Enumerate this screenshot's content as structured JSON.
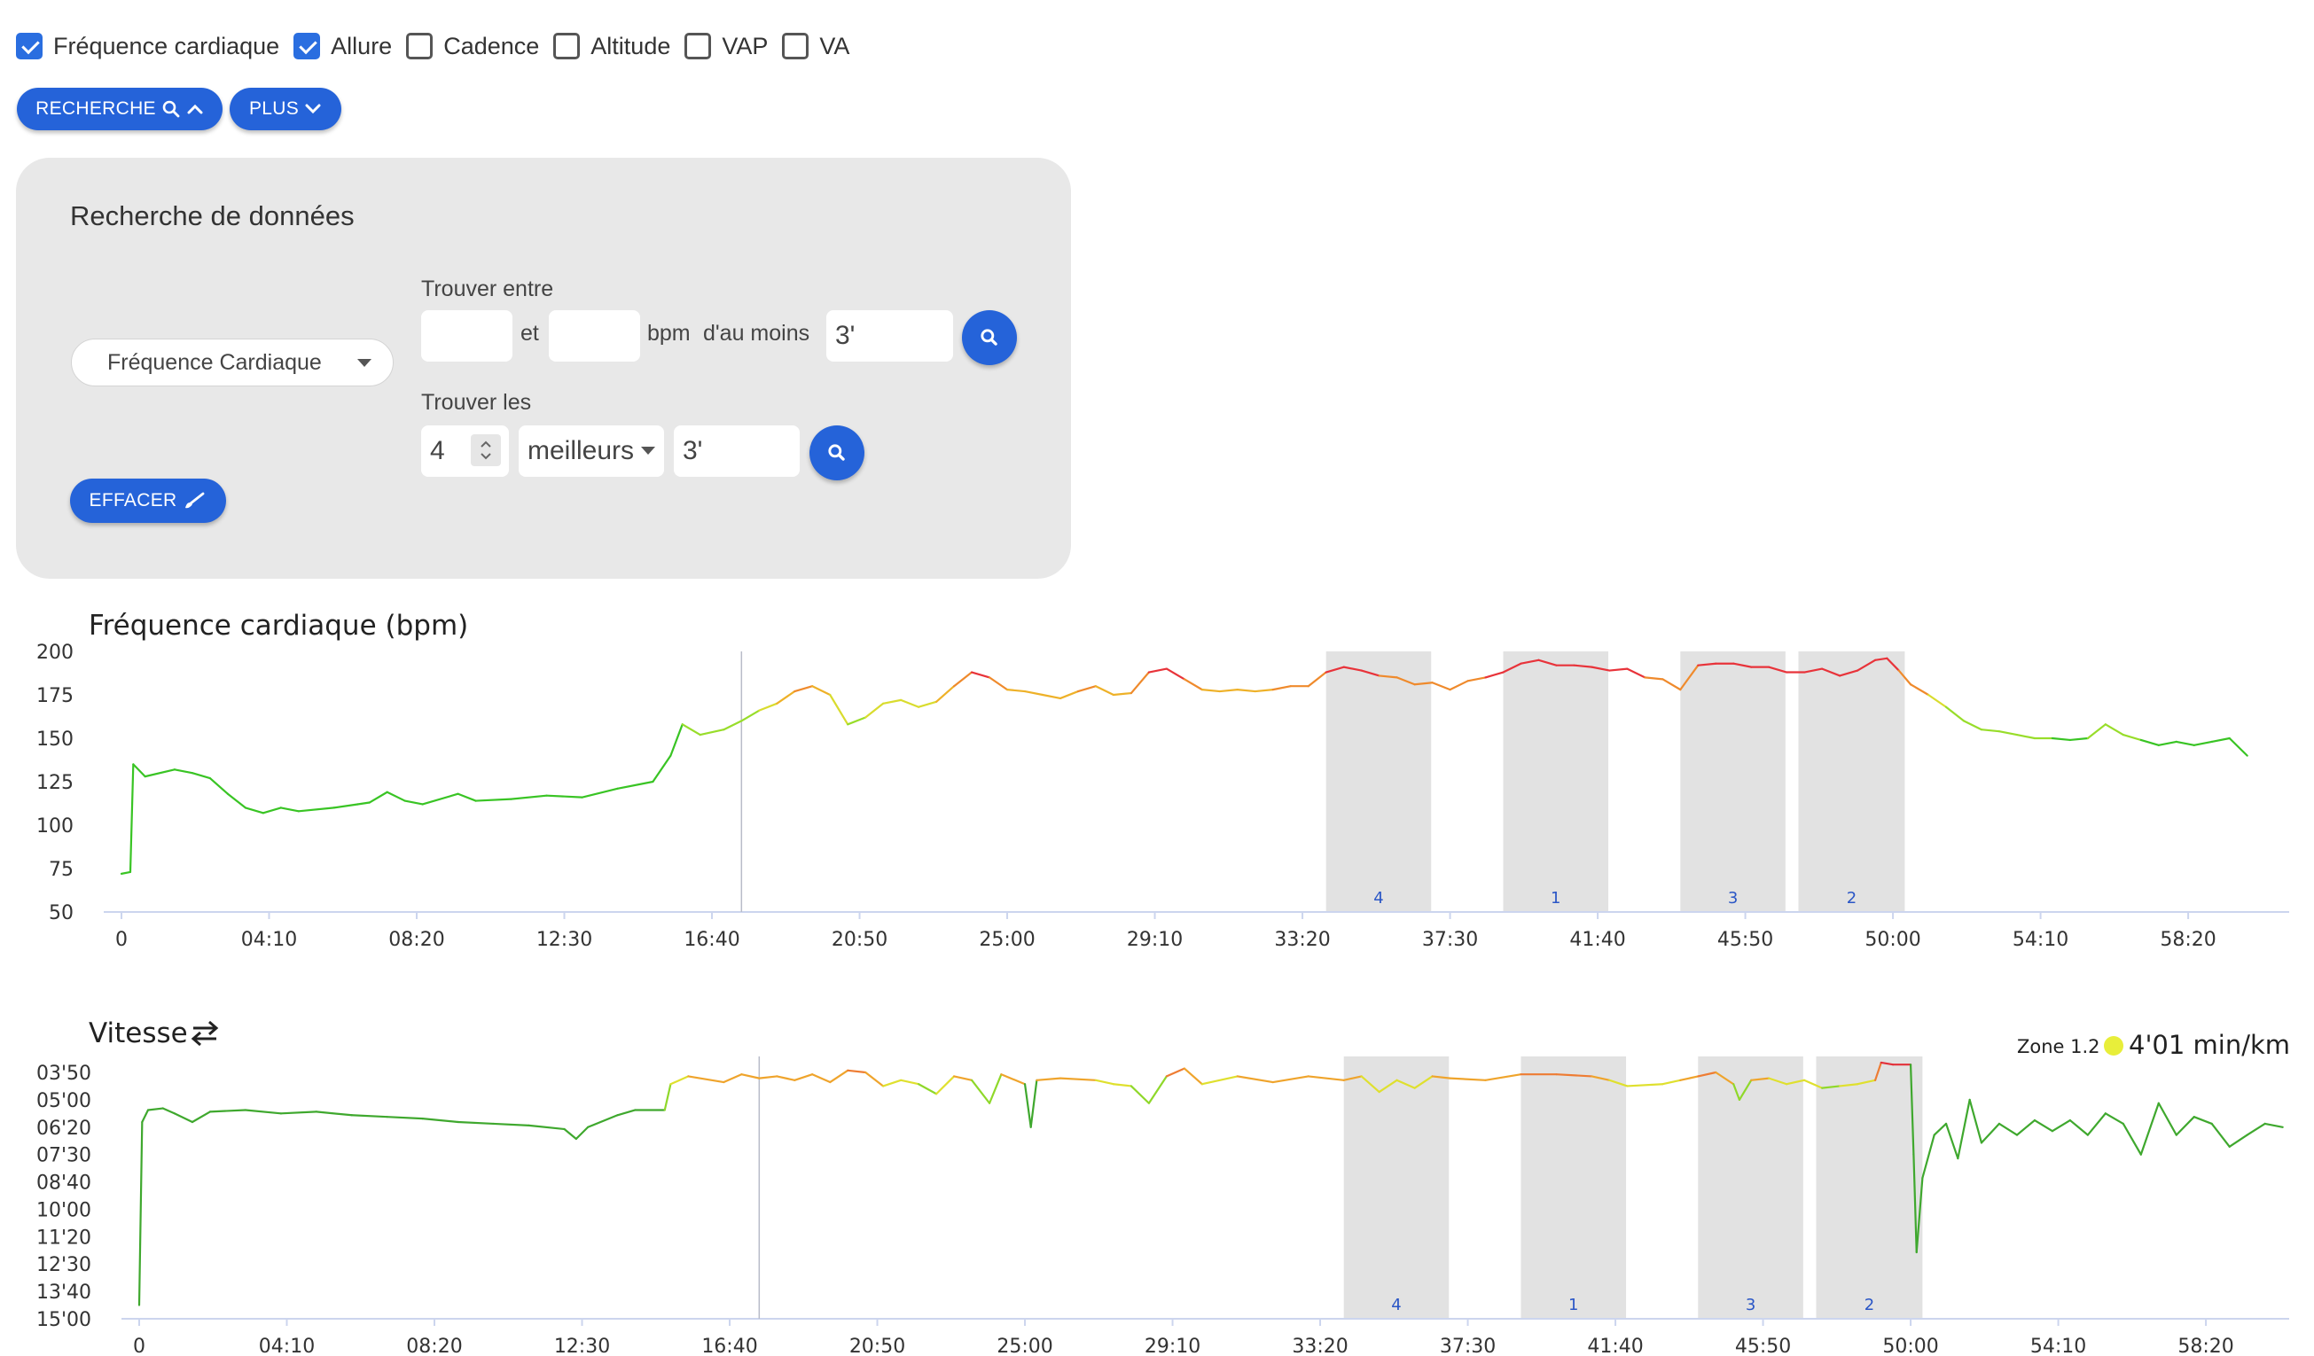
{
  "checkboxes": [
    {
      "label": "Fréquence cardiaque",
      "checked": true
    },
    {
      "label": "Allure",
      "checked": true
    },
    {
      "label": "Cadence",
      "checked": false
    },
    {
      "label": "Altitude",
      "checked": false
    },
    {
      "label": "VAP",
      "checked": false
    },
    {
      "label": "VA",
      "checked": false
    }
  ],
  "buttons": {
    "recherche": "RECHERCHE",
    "plus": "PLUS",
    "effacer": "EFFACER"
  },
  "panel": {
    "title": "Recherche de données",
    "metric": "Fréquence Cardiaque",
    "find_between": "Trouver entre",
    "et": "et",
    "bpm": "bpm",
    "au_moins": "d'au moins",
    "min_value": "",
    "max_value": "",
    "duration1": "3'",
    "find_best": "Trouver les",
    "count": "4",
    "best_mode": "meilleurs",
    "duration2": "3'"
  },
  "colors": {
    "accent": "#2563d9",
    "highlight": "#e2e2e2",
    "zone_dot": "#e8ee3a"
  },
  "chart_data": [
    {
      "type": "line",
      "title": "Fréquence cardiaque (bpm)",
      "ylim": [
        50,
        200
      ],
      "yticks": [
        "50",
        "75",
        "100",
        "125",
        "150",
        "175",
        "200"
      ],
      "xticks": [
        "0",
        "04:10",
        "08:20",
        "12:30",
        "16:40",
        "20:50",
        "25:00",
        "29:10",
        "33:20",
        "37:30",
        "41:40",
        "45:50",
        "50:00",
        "54:10",
        "58:20"
      ],
      "cursor_x": "17:30",
      "highlights": [
        {
          "label": "4",
          "from": "34:00",
          "to": "36:58"
        },
        {
          "label": "1",
          "from": "39:00",
          "to": "41:58"
        },
        {
          "label": "3",
          "from": "44:00",
          "to": "46:58"
        },
        {
          "label": "2",
          "from": "47:20",
          "to": "50:20"
        }
      ],
      "series": [
        {
          "points": [
            [
              "0",
              72
            ],
            [
              "0:15",
              73
            ],
            [
              "0:20",
              135
            ],
            [
              "0:40",
              128
            ],
            [
              "1:30",
              132
            ],
            [
              "2:00",
              130
            ],
            [
              "2:30",
              127
            ],
            [
              "3:00",
              118
            ],
            [
              "3:30",
              110
            ],
            [
              "4:00",
              107
            ],
            [
              "4:30",
              110
            ],
            [
              "5:00",
              108
            ],
            [
              "6:00",
              110
            ],
            [
              "6:40",
              112
            ],
            [
              "7:00",
              113
            ],
            [
              "7:30",
              119
            ],
            [
              "8:00",
              114
            ],
            [
              "8:30",
              112
            ],
            [
              "9:30",
              118
            ],
            [
              "10:00",
              114
            ],
            [
              "11:00",
              115
            ],
            [
              "12:00",
              117
            ],
            [
              "13:00",
              116
            ],
            [
              "14:00",
              121
            ],
            [
              "15:00",
              125
            ],
            [
              "15:30",
              140
            ],
            [
              "15:50",
              158
            ],
            [
              "16:20",
              152
            ],
            [
              "17:00",
              155
            ],
            [
              "17:30",
              160
            ],
            [
              "18:00",
              166
            ],
            [
              "18:30",
              170
            ],
            [
              "19:00",
              177
            ],
            [
              "19:30",
              180
            ],
            [
              "20:00",
              175
            ],
            [
              "20:30",
              158
            ],
            [
              "21:00",
              162
            ],
            [
              "21:30",
              170
            ],
            [
              "22:00",
              172
            ],
            [
              "22:30",
              168
            ],
            [
              "23:00",
              171
            ],
            [
              "23:30",
              180
            ],
            [
              "24:00",
              188
            ],
            [
              "24:30",
              185
            ],
            [
              "25:00",
              178
            ],
            [
              "25:30",
              177
            ],
            [
              "26:00",
              175
            ],
            [
              "26:30",
              173
            ],
            [
              "27:00",
              177
            ],
            [
              "27:30",
              180
            ],
            [
              "28:00",
              175
            ],
            [
              "28:30",
              176
            ],
            [
              "29:00",
              188
            ],
            [
              "29:30",
              190
            ],
            [
              "30:00",
              184
            ],
            [
              "30:30",
              178
            ],
            [
              "31:00",
              177
            ],
            [
              "31:30",
              178
            ],
            [
              "32:00",
              177
            ],
            [
              "32:30",
              178
            ],
            [
              "33:00",
              180
            ],
            [
              "33:30",
              180
            ],
            [
              "34:00",
              188
            ],
            [
              "34:30",
              191
            ],
            [
              "35:00",
              189
            ],
            [
              "35:30",
              186
            ],
            [
              "36:00",
              185
            ],
            [
              "36:30",
              181
            ],
            [
              "37:00",
              182
            ],
            [
              "37:30",
              178
            ],
            [
              "38:00",
              183
            ],
            [
              "38:30",
              185
            ],
            [
              "39:00",
              188
            ],
            [
              "39:30",
              193
            ],
            [
              "40:00",
              195
            ],
            [
              "40:30",
              192
            ],
            [
              "41:00",
              192
            ],
            [
              "41:30",
              191
            ],
            [
              "42:00",
              189
            ],
            [
              "42:30",
              190
            ],
            [
              "43:00",
              185
            ],
            [
              "43:30",
              184
            ],
            [
              "44:00",
              178
            ],
            [
              "44:30",
              192
            ],
            [
              "45:00",
              193
            ],
            [
              "45:30",
              193
            ],
            [
              "46:00",
              191
            ],
            [
              "46:30",
              191
            ],
            [
              "47:00",
              188
            ],
            [
              "47:30",
              188
            ],
            [
              "48:00",
              190
            ],
            [
              "48:30",
              186
            ],
            [
              "49:00",
              189
            ],
            [
              "49:30",
              195
            ],
            [
              "49:50",
              196
            ],
            [
              "50:10",
              189
            ],
            [
              "50:30",
              181
            ],
            [
              "51:00",
              175
            ],
            [
              "51:30",
              168
            ],
            [
              "52:00",
              160
            ],
            [
              "52:30",
              155
            ],
            [
              "53:00",
              154
            ],
            [
              "53:30",
              152
            ],
            [
              "54:00",
              150
            ],
            [
              "54:30",
              150
            ],
            [
              "55:00",
              149
            ],
            [
              "55:30",
              150
            ],
            [
              "56:00",
              158
            ],
            [
              "56:30",
              152
            ],
            [
              "57:00",
              149
            ],
            [
              "57:30",
              146
            ],
            [
              "58:00",
              148
            ],
            [
              "58:30",
              146
            ],
            [
              "59:00",
              148
            ],
            [
              "59:30",
              150
            ],
            [
              "60:00",
              140
            ]
          ]
        }
      ]
    },
    {
      "type": "line",
      "title": "Vitesse",
      "title_icon": "swap-arrows-icon",
      "yticks": [
        "03'50",
        "05'00",
        "06'20",
        "07'30",
        "08'40",
        "10'00",
        "11'20",
        "12'30",
        "13'40",
        "15'00"
      ],
      "xticks": [
        "0",
        "04:10",
        "08:20",
        "12:30",
        "16:40",
        "20:50",
        "25:00",
        "29:10",
        "33:20",
        "37:30",
        "41:40",
        "45:50",
        "50:00",
        "54:10",
        "58:20"
      ],
      "cursor_x": "17:30",
      "zone_label": "Zone 1.2",
      "zone_value": "4'01 min/km",
      "highlights": [
        {
          "label": "4",
          "from": "34:00",
          "to": "36:58"
        },
        {
          "label": "1",
          "from": "39:00",
          "to": "41:58"
        },
        {
          "label": "3",
          "from": "44:00",
          "to": "46:58"
        },
        {
          "label": "2",
          "from": "47:20",
          "to": "50:20"
        }
      ],
      "series": [
        {
          "points": [
            [
              "0",
              "14'20"
            ],
            [
              "0:05",
              "06'05"
            ],
            [
              "0:15",
              "05'30"
            ],
            [
              "0:40",
              "05'25"
            ],
            [
              "1:00",
              "05'40"
            ],
            [
              "1:30",
              "06'05"
            ],
            [
              "2:00",
              "05'35"
            ],
            [
              "3:00",
              "05'30"
            ],
            [
              "4:00",
              "05'40"
            ],
            [
              "5:00",
              "05'35"
            ],
            [
              "6:00",
              "05'45"
            ],
            [
              "7:00",
              "05'50"
            ],
            [
              "8:00",
              "05'55"
            ],
            [
              "9:00",
              "06'05"
            ],
            [
              "10:00",
              "06'10"
            ],
            [
              "11:00",
              "06'15"
            ],
            [
              "12:00",
              "06'25"
            ],
            [
              "12:20",
              "06'50"
            ],
            [
              "12:40",
              "06'20"
            ],
            [
              "13:30",
              "05'45"
            ],
            [
              "14:00",
              "05'30"
            ],
            [
              "14:50",
              "05'30"
            ],
            [
              "15:00",
              "04'20"
            ],
            [
              "15:30",
              "04'00"
            ],
            [
              "16:30",
              "04'15"
            ],
            [
              "17:00",
              "03'55"
            ],
            [
              "17:30",
              "04'05"
            ],
            [
              "18:00",
              "04'00"
            ],
            [
              "18:30",
              "04'10"
            ],
            [
              "19:00",
              "03'55"
            ],
            [
              "19:30",
              "04'15"
            ],
            [
              "20:00",
              "03'45"
            ],
            [
              "20:30",
              "03'50"
            ],
            [
              "21:00",
              "04'25"
            ],
            [
              "21:30",
              "04'10"
            ],
            [
              "22:00",
              "04'20"
            ],
            [
              "22:30",
              "04'45"
            ],
            [
              "23:00",
              "04'00"
            ],
            [
              "23:30",
              "04'10"
            ],
            [
              "24:00",
              "05'10"
            ],
            [
              "24:20",
              "03'55"
            ],
            [
              "25:00",
              "04'20"
            ],
            [
              "25:10",
              "06'20"
            ],
            [
              "25:20",
              "04'10"
            ],
            [
              "26:00",
              "04'05"
            ],
            [
              "27:00",
              "04'10"
            ],
            [
              "27:30",
              "04'20"
            ],
            [
              "28:00",
              "04'25"
            ],
            [
              "28:30",
              "05'10"
            ],
            [
              "29:00",
              "04'00"
            ],
            [
              "29:30",
              "03'40"
            ],
            [
              "30:00",
              "04'20"
            ],
            [
              "31:00",
              "04'00"
            ],
            [
              "32:00",
              "04'15"
            ],
            [
              "33:00",
              "04'00"
            ],
            [
              "34:00",
              "04'10"
            ],
            [
              "34:30",
              "04'00"
            ],
            [
              "35:00",
              "04'40"
            ],
            [
              "35:30",
              "04'10"
            ],
            [
              "36:00",
              "04'30"
            ],
            [
              "36:30",
              "04'00"
            ],
            [
              "37:00",
              "04'05"
            ],
            [
              "38:00",
              "04'10"
            ],
            [
              "39:00",
              "03'55"
            ],
            [
              "40:00",
              "03'55"
            ],
            [
              "41:00",
              "04'00"
            ],
            [
              "41:30",
              "04'10"
            ],
            [
              "42:00",
              "04'25"
            ],
            [
              "43:00",
              "04'20"
            ],
            [
              "43:30",
              "04'10"
            ],
            [
              "44:00",
              "04'00"
            ],
            [
              "44:30",
              "03'50"
            ],
            [
              "45:00",
              "04'20"
            ],
            [
              "45:10",
              "05'00"
            ],
            [
              "45:30",
              "04'10"
            ],
            [
              "46:00",
              "04'05"
            ],
            [
              "46:30",
              "04'20"
            ],
            [
              "47:00",
              "04'10"
            ],
            [
              "47:30",
              "04'30"
            ],
            [
              "48:00",
              "04'25"
            ],
            [
              "48:30",
              "04'20"
            ],
            [
              "49:00",
              "04'10"
            ],
            [
              "49:10",
              "03'25"
            ],
            [
              "49:30",
              "03'30"
            ],
            [
              "50:00",
              "03'30"
            ],
            [
              "50:05",
              "07'30"
            ],
            [
              "50:10",
              "12'00"
            ],
            [
              "50:20",
              "08'30"
            ],
            [
              "50:40",
              "06'40"
            ],
            [
              "51:00",
              "06'10"
            ],
            [
              "51:20",
              "07'40"
            ],
            [
              "51:40",
              "05'00"
            ],
            [
              "52:00",
              "07'00"
            ],
            [
              "52:30",
              "06'10"
            ],
            [
              "53:00",
              "06'40"
            ],
            [
              "53:30",
              "06'00"
            ],
            [
              "54:00",
              "06'30"
            ],
            [
              "54:30",
              "06'00"
            ],
            [
              "55:00",
              "06'40"
            ],
            [
              "55:30",
              "05'40"
            ],
            [
              "56:00",
              "06'10"
            ],
            [
              "56:30",
              "07'30"
            ],
            [
              "57:00",
              "05'10"
            ],
            [
              "57:30",
              "06'40"
            ],
            [
              "58:00",
              "05'50"
            ],
            [
              "58:30",
              "06'10"
            ],
            [
              "59:00",
              "07'10"
            ],
            [
              "59:30",
              "06'40"
            ],
            [
              "60:00",
              "06'10"
            ],
            [
              "60:30",
              "06'20"
            ]
          ]
        }
      ]
    }
  ]
}
